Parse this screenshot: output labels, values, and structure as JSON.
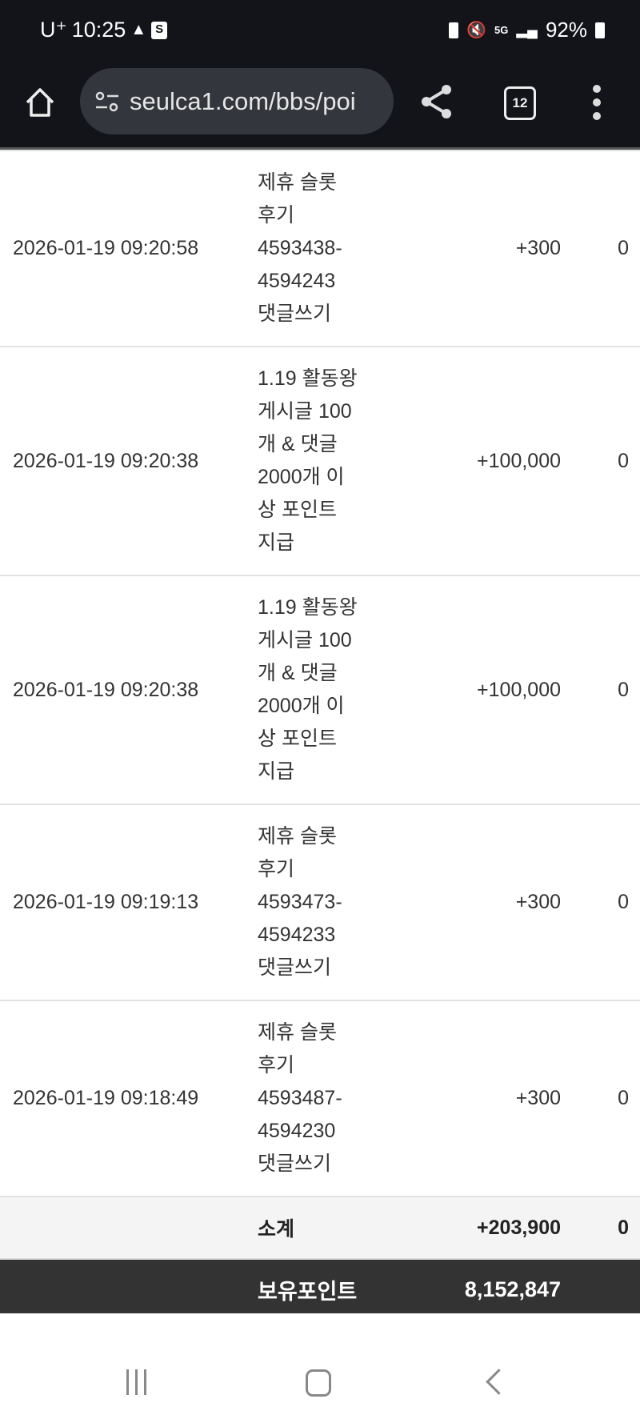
{
  "status_bar": {
    "carrier": "U⁺",
    "time": "10:25",
    "network": "5G",
    "battery": "92%"
  },
  "browser": {
    "url": "seulca1.com/bbs/poi",
    "tab_count": "12"
  },
  "rows": [
    {
      "datetime": "2026-01-19 09:20:58",
      "content": "제휴 슬롯 후기 4593438-4594243 댓글쓰기",
      "earned": "+300",
      "used": "0"
    },
    {
      "datetime": "2026-01-19 09:20:38",
      "content": "1.19 활동왕 게시글 100개 & 댓글 2000개 이상 포인트 지급",
      "earned": "+100,000",
      "used": "0"
    },
    {
      "datetime": "2026-01-19 09:20:38",
      "content": "1.19 활동왕 게시글 100개 & 댓글 2000개 이상 포인트 지급",
      "earned": "+100,000",
      "used": "0"
    },
    {
      "datetime": "2026-01-19 09:19:13",
      "content": "제휴 슬롯 후기 4593473-4594233 댓글쓰기",
      "earned": "+300",
      "used": "0"
    },
    {
      "datetime": "2026-01-19 09:18:49",
      "content": "제휴 슬롯 후기 4593487-4594230 댓글쓰기",
      "earned": "+300",
      "used": "0"
    }
  ],
  "subtotal": {
    "label": "소계",
    "earned": "+203,900",
    "used": "0"
  },
  "total": {
    "label": "보유포인트",
    "value": "8,152,847"
  }
}
